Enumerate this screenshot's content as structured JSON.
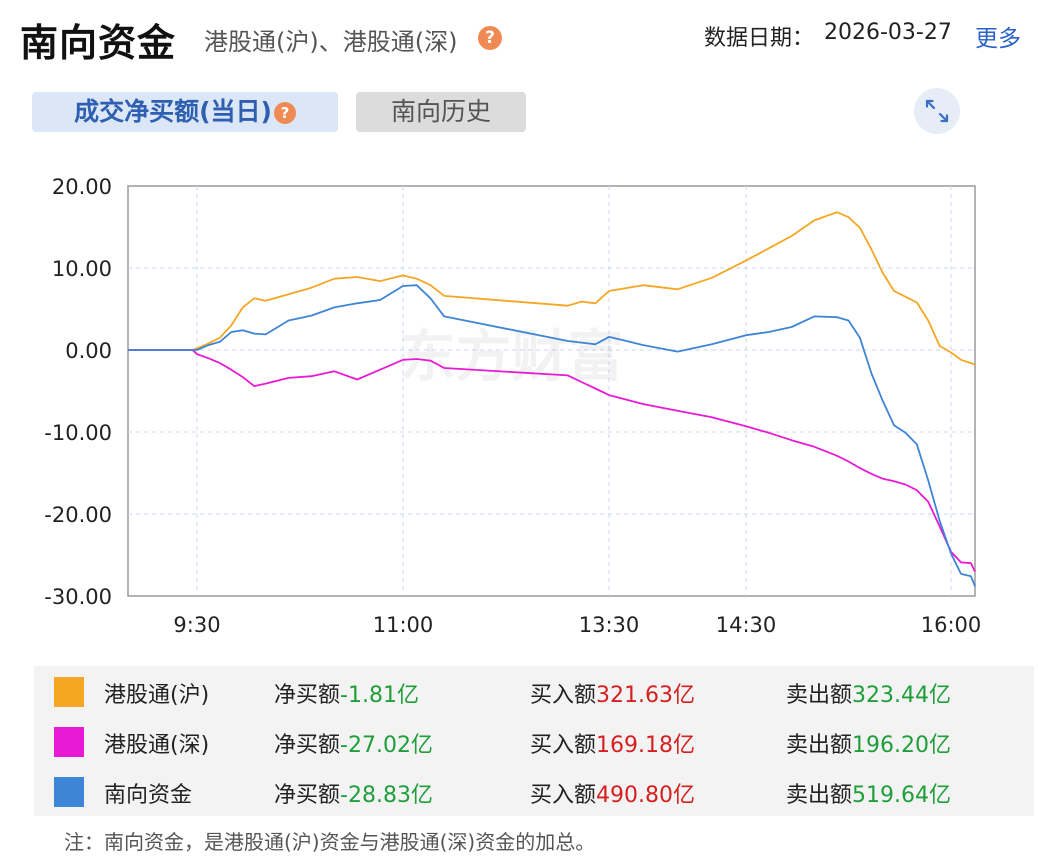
{
  "header": {
    "title": "南向资金",
    "subtitle": "港股通(沪)、港股通(深)",
    "help_icon": "?",
    "date_label": "数据日期：",
    "date_value": "2026-03-27",
    "more_label": "更多"
  },
  "tabs": [
    {
      "label": "成交净买额(当日)",
      "active": true
    },
    {
      "label": "南向历史",
      "active": false
    }
  ],
  "expand_icon": "expand-icon",
  "watermark": "东方财富",
  "chart_data": {
    "type": "line",
    "ylim": [
      -30,
      20
    ],
    "yticks": [
      "20.00",
      "10.00",
      "0.00",
      "-10.00",
      "-20.00",
      "-30.00"
    ],
    "ytick_values": [
      20,
      10,
      0,
      -10,
      -20,
      -30
    ],
    "xticks": [
      "9:30",
      "11:00",
      "13:30",
      "14:30",
      "16:00"
    ],
    "grid": true,
    "series": [
      {
        "name": "港股通(沪)",
        "color": "#f5a623",
        "points": [
          [
            "9:00",
            0
          ],
          [
            "9:28",
            0
          ],
          [
            "9:30",
            0.2
          ],
          [
            "9:35",
            0.8
          ],
          [
            "9:40",
            1.5
          ],
          [
            "9:45",
            3.0
          ],
          [
            "9:50",
            5.2
          ],
          [
            "9:55",
            6.3
          ],
          [
            "10:00",
            6.0
          ],
          [
            "10:10",
            6.8
          ],
          [
            "10:20",
            7.6
          ],
          [
            "10:30",
            8.7
          ],
          [
            "10:40",
            8.9
          ],
          [
            "10:50",
            8.4
          ],
          [
            "11:00",
            9.1
          ],
          [
            "11:10",
            8.7
          ],
          [
            "11:20",
            7.9
          ],
          [
            "11:30",
            6.6
          ],
          [
            "13:00",
            5.4
          ],
          [
            "13:10",
            5.9
          ],
          [
            "13:20",
            5.7
          ],
          [
            "13:30",
            7.2
          ],
          [
            "13:45",
            7.9
          ],
          [
            "14:00",
            7.4
          ],
          [
            "14:15",
            8.8
          ],
          [
            "14:30",
            10.9
          ],
          [
            "14:40",
            12.4
          ],
          [
            "14:50",
            13.9
          ],
          [
            "15:00",
            15.8
          ],
          [
            "15:10",
            16.8
          ],
          [
            "15:15",
            16.2
          ],
          [
            "15:20",
            14.9
          ],
          [
            "15:25",
            12.3
          ],
          [
            "15:30",
            9.4
          ],
          [
            "15:35",
            7.2
          ],
          [
            "15:40",
            6.5
          ],
          [
            "15:45",
            5.8
          ],
          [
            "15:50",
            3.6
          ],
          [
            "15:55",
            0.5
          ],
          [
            "16:00",
            -0.3
          ],
          [
            "16:05",
            -1.2
          ],
          [
            "16:10",
            -1.6
          ],
          [
            "16:12",
            -1.81
          ]
        ]
      },
      {
        "name": "港股通(深)",
        "color": "#e81ad6",
        "points": [
          [
            "9:00",
            0
          ],
          [
            "9:28",
            0
          ],
          [
            "9:30",
            -0.5
          ],
          [
            "9:35",
            -1.0
          ],
          [
            "9:40",
            -1.6
          ],
          [
            "9:45",
            -2.4
          ],
          [
            "9:50",
            -3.3
          ],
          [
            "9:55",
            -4.4
          ],
          [
            "10:00",
            -4.1
          ],
          [
            "10:10",
            -3.4
          ],
          [
            "10:20",
            -3.2
          ],
          [
            "10:30",
            -2.6
          ],
          [
            "10:40",
            -3.6
          ],
          [
            "10:50",
            -2.4
          ],
          [
            "11:00",
            -1.2
          ],
          [
            "11:10",
            -1.1
          ],
          [
            "11:20",
            -1.3
          ],
          [
            "11:30",
            -2.2
          ],
          [
            "13:00",
            -3.1
          ],
          [
            "13:10",
            -3.9
          ],
          [
            "13:20",
            -4.7
          ],
          [
            "13:30",
            -5.5
          ],
          [
            "13:45",
            -6.6
          ],
          [
            "14:00",
            -7.4
          ],
          [
            "14:15",
            -8.2
          ],
          [
            "14:30",
            -9.3
          ],
          [
            "14:40",
            -10.1
          ],
          [
            "14:50",
            -11.0
          ],
          [
            "15:00",
            -11.8
          ],
          [
            "15:10",
            -12.9
          ],
          [
            "15:15",
            -13.6
          ],
          [
            "15:20",
            -14.4
          ],
          [
            "15:25",
            -15.1
          ],
          [
            "15:30",
            -15.7
          ],
          [
            "15:35",
            -16.0
          ],
          [
            "15:40",
            -16.4
          ],
          [
            "15:45",
            -17.1
          ],
          [
            "15:50",
            -18.5
          ],
          [
            "15:55",
            -21.5
          ],
          [
            "16:00",
            -24.6
          ],
          [
            "16:05",
            -25.9
          ],
          [
            "16:10",
            -26.0
          ],
          [
            "16:12",
            -27.02
          ]
        ]
      },
      {
        "name": "南向资金",
        "color": "#3f85d6",
        "points": [
          [
            "9:00",
            0
          ],
          [
            "9:28",
            0
          ],
          [
            "9:30",
            0
          ],
          [
            "9:35",
            0.6
          ],
          [
            "9:40",
            1.0
          ],
          [
            "9:45",
            2.2
          ],
          [
            "9:50",
            2.4
          ],
          [
            "9:55",
            2.0
          ],
          [
            "10:00",
            1.9
          ],
          [
            "10:10",
            3.6
          ],
          [
            "10:20",
            4.2
          ],
          [
            "10:30",
            5.2
          ],
          [
            "10:40",
            5.7
          ],
          [
            "10:50",
            6.1
          ],
          [
            "11:00",
            7.8
          ],
          [
            "11:10",
            7.9
          ],
          [
            "11:20",
            6.3
          ],
          [
            "11:30",
            4.1
          ],
          [
            "13:00",
            1.1
          ],
          [
            "13:10",
            0.9
          ],
          [
            "13:20",
            0.7
          ],
          [
            "13:30",
            1.6
          ],
          [
            "13:45",
            0.6
          ],
          [
            "14:00",
            -0.2
          ],
          [
            "14:15",
            0.7
          ],
          [
            "14:30",
            1.8
          ],
          [
            "14:40",
            2.2
          ],
          [
            "14:50",
            2.8
          ],
          [
            "15:00",
            4.1
          ],
          [
            "15:10",
            4.0
          ],
          [
            "15:15",
            3.6
          ],
          [
            "15:20",
            1.5
          ],
          [
            "15:25",
            -2.8
          ],
          [
            "15:30",
            -6.2
          ],
          [
            "15:35",
            -9.2
          ],
          [
            "15:40",
            -10.1
          ],
          [
            "15:45",
            -11.5
          ],
          [
            "15:50",
            -15.9
          ],
          [
            "15:55",
            -20.8
          ],
          [
            "16:00",
            -24.8
          ],
          [
            "16:05",
            -27.3
          ],
          [
            "16:10",
            -27.6
          ],
          [
            "16:12",
            -28.83
          ]
        ]
      }
    ]
  },
  "legend": {
    "net_label": "净买额",
    "buy_label": "买入额",
    "sell_label": "卖出额",
    "rows": [
      {
        "name": "港股通(沪)",
        "color": "#f5a623",
        "net": "-1.81亿",
        "buy": "321.63亿",
        "sell": "323.44亿"
      },
      {
        "name": "港股通(深)",
        "color": "#e81ad6",
        "net": "-27.02亿",
        "buy": "169.18亿",
        "sell": "196.20亿"
      },
      {
        "name": "南向资金",
        "color": "#3f85d6",
        "net": "-28.83亿",
        "buy": "490.80亿",
        "sell": "519.64亿"
      }
    ]
  },
  "note": "注：南向资金，是港股通(沪)资金与港股通(深)资金的加总。"
}
